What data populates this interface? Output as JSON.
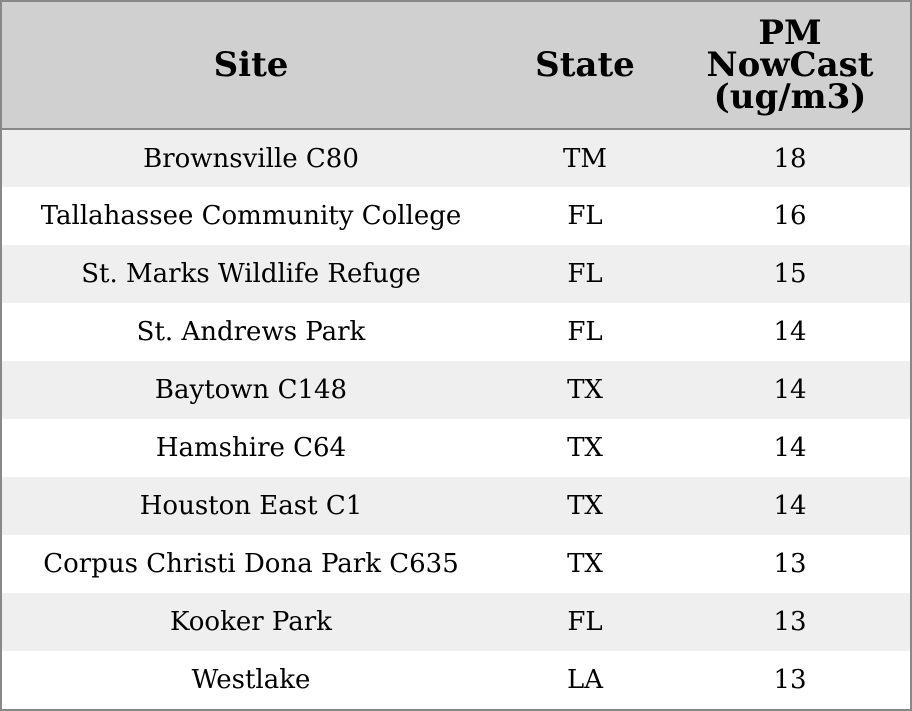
{
  "table": {
    "columns": [
      "Site",
      "State",
      "PM NowCast (ug/m3)"
    ],
    "rows": [
      {
        "site": "Brownsville C80",
        "state": "TM",
        "pm": "18"
      },
      {
        "site": "Tallahassee Community College",
        "state": "FL",
        "pm": "16"
      },
      {
        "site": "St. Marks Wildlife Refuge",
        "state": "FL",
        "pm": "15"
      },
      {
        "site": "St. Andrews Park",
        "state": "FL",
        "pm": "14"
      },
      {
        "site": "Baytown C148",
        "state": "TX",
        "pm": "14"
      },
      {
        "site": "Hamshire C64",
        "state": "TX",
        "pm": "14"
      },
      {
        "site": "Houston East C1",
        "state": "TX",
        "pm": "14"
      },
      {
        "site": "Corpus Christi Dona Park C635",
        "state": "TX",
        "pm": "13"
      },
      {
        "site": "Kooker Park",
        "state": "FL",
        "pm": "13"
      },
      {
        "site": "Westlake",
        "state": "LA",
        "pm": "13"
      }
    ]
  },
  "colors": {
    "header_background": "#d0d0d0",
    "row_shaded": "#efefef",
    "row_plain": "#ffffff",
    "border": "#888888"
  }
}
